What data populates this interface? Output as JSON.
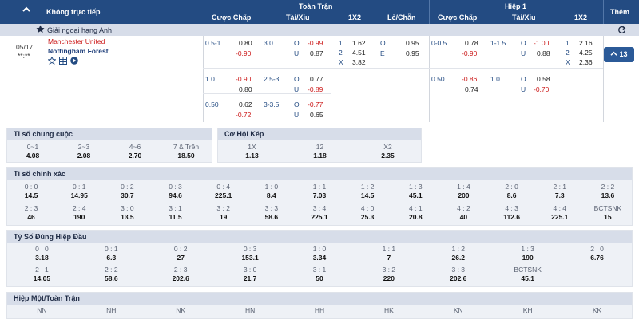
{
  "header": {
    "live_label": "Không trực tiếp",
    "full_match_label": "Toàn Trận",
    "half1_label": "Hiệp 1",
    "more_label": "Thêm",
    "cols": {
      "handicap": "Cược Chấp",
      "ou": "Tài/Xỉu",
      "x12": "1X2",
      "oe": "Lẻ/Chẵn"
    }
  },
  "league": {
    "name": "Giải ngoại hạng Anh"
  },
  "match": {
    "date": "05/17",
    "time": "**:**",
    "home": "Manchester United",
    "away": "Nottingham Forest",
    "more_count": "13",
    "ft_rows": [
      {
        "hdp_line": "0.5-1",
        "hdp_home": "0.80",
        "hdp_away": "-0.90",
        "ou_line": "3.0",
        "o_label": "O",
        "u_label": "U",
        "ou_over": "-0.99",
        "ou_under": "0.87"
      },
      {
        "hdp_line": "1.0",
        "hdp_home": "-0.90",
        "hdp_away": "0.80",
        "ou_line": "2.5-3",
        "o_label": "O",
        "u_label": "U",
        "ou_over": "0.77",
        "ou_under": "-0.89"
      },
      {
        "hdp_line": "0.50",
        "hdp_home": "0.62",
        "hdp_away": "-0.72",
        "ou_line": "3-3.5",
        "o_label": "O",
        "u_label": "U",
        "ou_over": "-0.77",
        "ou_under": "0.65"
      }
    ],
    "x12": {
      "l1": "1",
      "l2": "2",
      "lx": "X",
      "v1": "1.62",
      "v2": "4.51",
      "vx": "3.82"
    },
    "oe": {
      "lo": "O",
      "le": "E",
      "vo": "0.95",
      "ve": "0.95"
    },
    "h1_rows": [
      {
        "hdp_line": "0-0.5",
        "hdp_home": "0.78",
        "hdp_away": "-0.90",
        "ou_line": "1-1.5",
        "o_label": "O",
        "u_label": "U",
        "ou_over": "-1.00",
        "ou_under": "0.88"
      },
      {
        "hdp_line": "0.50",
        "hdp_home": "-0.86",
        "hdp_away": "0.74",
        "ou_line": "1.0",
        "o_label": "O",
        "u_label": "U",
        "ou_over": "0.58",
        "ou_under": "-0.70"
      }
    ],
    "h1_x12": {
      "l1": "1",
      "l2": "2",
      "lx": "X",
      "v1": "2.16",
      "v2": "4.25",
      "vx": "2.36"
    }
  },
  "final_score": {
    "title": "Tỉ số chung cuộc",
    "items": [
      {
        "k": "0~1",
        "v": "4.08"
      },
      {
        "k": "2~3",
        "v": "2.08"
      },
      {
        "k": "4~6",
        "v": "2.70"
      },
      {
        "k": "7 & Trên",
        "v": "18.50"
      }
    ]
  },
  "double_chance": {
    "title": "Cơ Hội Kép",
    "items": [
      {
        "k": "1X",
        "v": "1.13"
      },
      {
        "k": "12",
        "v": "1.18"
      },
      {
        "k": "X2",
        "v": "2.35"
      }
    ]
  },
  "correct_score": {
    "title": "Tỉ số chính xác",
    "row1": [
      {
        "k": "0 : 0",
        "v": "14.5"
      },
      {
        "k": "0 : 1",
        "v": "14.95"
      },
      {
        "k": "0 : 2",
        "v": "30.7"
      },
      {
        "k": "0 : 3",
        "v": "94.6"
      },
      {
        "k": "0 : 4",
        "v": "225.1"
      },
      {
        "k": "1 : 0",
        "v": "8.4"
      },
      {
        "k": "1 : 1",
        "v": "7.03"
      },
      {
        "k": "1 : 2",
        "v": "14.5"
      },
      {
        "k": "1 : 3",
        "v": "45.1"
      },
      {
        "k": "1 : 4",
        "v": "200"
      },
      {
        "k": "2 : 0",
        "v": "8.6"
      },
      {
        "k": "2 : 1",
        "v": "7.3"
      },
      {
        "k": "2 : 2",
        "v": "13.6"
      }
    ],
    "row2": [
      {
        "k": "2 : 3",
        "v": "46"
      },
      {
        "k": "2 : 4",
        "v": "190"
      },
      {
        "k": "3 : 0",
        "v": "13.5"
      },
      {
        "k": "3 : 1",
        "v": "11.5"
      },
      {
        "k": "3 : 2",
        "v": "19"
      },
      {
        "k": "3 : 3",
        "v": "58.6"
      },
      {
        "k": "3 : 4",
        "v": "225.1"
      },
      {
        "k": "4 : 0",
        "v": "25.3"
      },
      {
        "k": "4 : 1",
        "v": "20.8"
      },
      {
        "k": "4 : 2",
        "v": "40"
      },
      {
        "k": "4 : 3",
        "v": "112.6"
      },
      {
        "k": "4 : 4",
        "v": "225.1"
      },
      {
        "k": "BCTSNK",
        "v": "15"
      }
    ]
  },
  "half_correct_score": {
    "title": "Tỷ Số Đúng Hiệp Đầu",
    "row1": [
      {
        "k": "0 : 0",
        "v": "3.18"
      },
      {
        "k": "0 : 1",
        "v": "6.3"
      },
      {
        "k": "0 : 2",
        "v": "27"
      },
      {
        "k": "0 : 3",
        "v": "153.1"
      },
      {
        "k": "1 : 0",
        "v": "3.34"
      },
      {
        "k": "1 : 1",
        "v": "7"
      },
      {
        "k": "1 : 2",
        "v": "26.2"
      },
      {
        "k": "1 : 3",
        "v": "190"
      },
      {
        "k": "2 : 0",
        "v": "6.76"
      }
    ],
    "row2": [
      {
        "k": "2 : 1",
        "v": "14.05"
      },
      {
        "k": "2 : 2",
        "v": "58.6"
      },
      {
        "k": "2 : 3",
        "v": "202.6"
      },
      {
        "k": "3 : 0",
        "v": "21.7"
      },
      {
        "k": "3 : 1",
        "v": "50"
      },
      {
        "k": "3 : 2",
        "v": "220"
      },
      {
        "k": "3 : 3",
        "v": "202.6"
      },
      {
        "k": "BCTSNK",
        "v": "45.1"
      }
    ]
  },
  "ht_ft": {
    "title": "Hiệp Một/Toàn Trận",
    "items": [
      {
        "k": "NN"
      },
      {
        "k": "NH"
      },
      {
        "k": "NK"
      },
      {
        "k": "HN"
      },
      {
        "k": "HH"
      },
      {
        "k": "HK"
      },
      {
        "k": "KN"
      },
      {
        "k": "KH"
      },
      {
        "k": "KK"
      }
    ]
  },
  "colors": {
    "header": "#234b82",
    "subheader": "#d7dde9",
    "accent_red": "#cc1a1a",
    "section_bg": "#eef1f6"
  }
}
